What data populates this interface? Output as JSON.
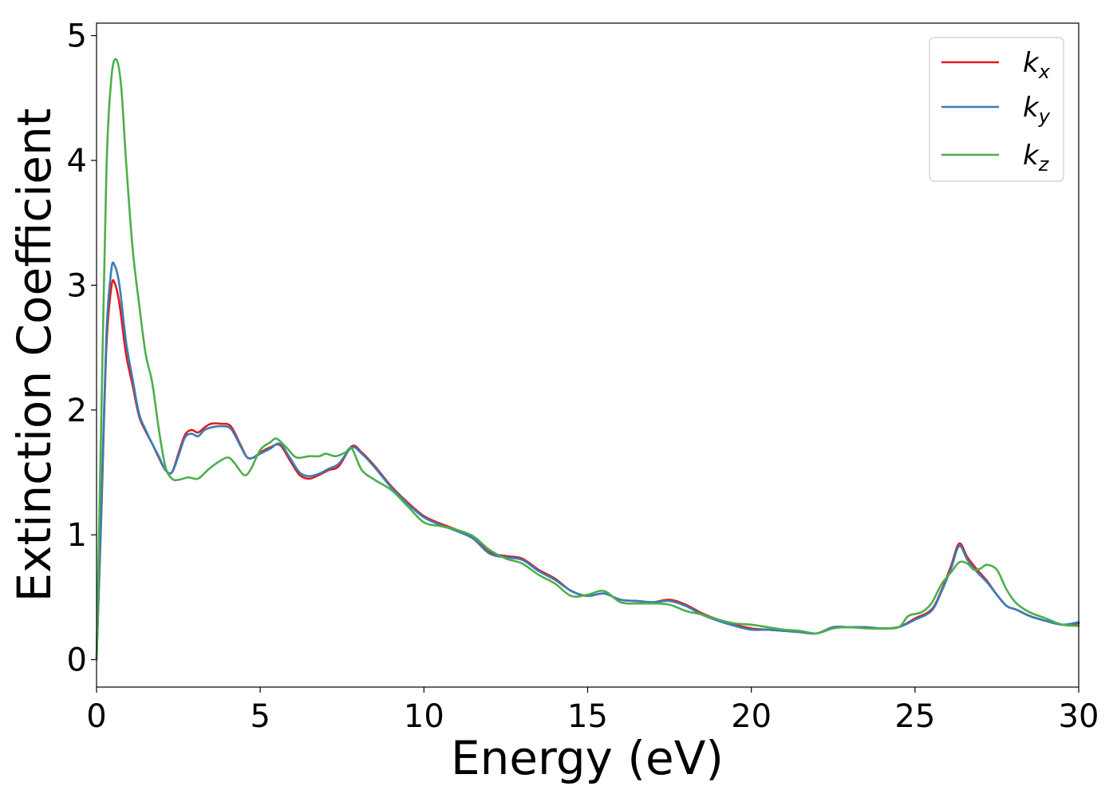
{
  "chart_data": {
    "type": "line",
    "title": "",
    "xlabel": "Energy (eV)",
    "ylabel": "Extinction Coefficient",
    "xlim": [
      0,
      30
    ],
    "ylim": [
      -0.22,
      5.1
    ],
    "xticks": [
      0,
      5,
      10,
      15,
      20,
      25,
      30
    ],
    "yticks": [
      0,
      1,
      2,
      3,
      4,
      5
    ],
    "grid": false,
    "legend_position": "top-right",
    "series": [
      {
        "name": "kx",
        "label_base": "k",
        "label_sub": "x",
        "color": "#e41a1c",
        "x": [
          0,
          0.15,
          0.3,
          0.45,
          0.55,
          0.7,
          0.9,
          1.1,
          1.3,
          1.5,
          1.7,
          1.9,
          2.1,
          2.3,
          2.5,
          2.7,
          2.9,
          3.1,
          3.3,
          3.5,
          3.8,
          4.1,
          4.4,
          4.6,
          4.8,
          5.0,
          5.3,
          5.6,
          5.9,
          6.2,
          6.5,
          6.8,
          7.1,
          7.4,
          7.8,
          8.1,
          8.5,
          9.0,
          9.5,
          10.0,
          10.5,
          11.0,
          11.5,
          12.0,
          12.5,
          13.0,
          13.5,
          14.0,
          14.5,
          15.0,
          15.5,
          16.0,
          16.5,
          17.0,
          17.5,
          18.0,
          18.5,
          19.0,
          19.5,
          20.0,
          20.5,
          21.0,
          21.5,
          22.0,
          22.5,
          23.0,
          23.5,
          24.0,
          24.5,
          25.0,
          25.5,
          25.8,
          26.1,
          26.35,
          26.6,
          26.9,
          27.2,
          27.5,
          27.8,
          28.1,
          28.5,
          29.0,
          29.5,
          30.0
        ],
        "y": [
          0.0,
          1.2,
          2.5,
          2.98,
          3.02,
          2.85,
          2.45,
          2.2,
          1.95,
          1.83,
          1.73,
          1.62,
          1.52,
          1.5,
          1.65,
          1.8,
          1.84,
          1.82,
          1.86,
          1.89,
          1.89,
          1.87,
          1.72,
          1.62,
          1.62,
          1.66,
          1.7,
          1.72,
          1.6,
          1.48,
          1.45,
          1.48,
          1.52,
          1.55,
          1.71,
          1.66,
          1.55,
          1.39,
          1.26,
          1.15,
          1.09,
          1.04,
          0.98,
          0.86,
          0.83,
          0.81,
          0.72,
          0.65,
          0.55,
          0.51,
          0.53,
          0.48,
          0.47,
          0.46,
          0.48,
          0.44,
          0.37,
          0.32,
          0.28,
          0.25,
          0.24,
          0.23,
          0.22,
          0.21,
          0.26,
          0.26,
          0.26,
          0.25,
          0.26,
          0.33,
          0.4,
          0.55,
          0.75,
          0.93,
          0.82,
          0.72,
          0.63,
          0.52,
          0.43,
          0.4,
          0.35,
          0.31,
          0.28,
          0.29
        ]
      },
      {
        "name": "ky",
        "label_base": "k",
        "label_sub": "y",
        "color": "#377eb8",
        "x": [
          0,
          0.15,
          0.3,
          0.45,
          0.55,
          0.7,
          0.9,
          1.1,
          1.3,
          1.5,
          1.7,
          1.9,
          2.1,
          2.3,
          2.5,
          2.7,
          2.9,
          3.1,
          3.3,
          3.5,
          3.8,
          4.1,
          4.4,
          4.6,
          4.8,
          5.0,
          5.3,
          5.6,
          5.9,
          6.2,
          6.5,
          6.8,
          7.1,
          7.4,
          7.8,
          8.1,
          8.5,
          9.0,
          9.5,
          10.0,
          10.5,
          11.0,
          11.5,
          12.0,
          12.5,
          13.0,
          13.5,
          14.0,
          14.5,
          15.0,
          15.5,
          16.0,
          16.5,
          17.0,
          17.5,
          18.0,
          18.5,
          19.0,
          19.5,
          20.0,
          20.5,
          21.0,
          21.5,
          22.0,
          22.5,
          23.0,
          23.5,
          24.0,
          24.5,
          25.0,
          25.5,
          25.8,
          26.1,
          26.35,
          26.6,
          26.9,
          27.2,
          27.5,
          27.8,
          28.1,
          28.5,
          29.0,
          29.5,
          30.0
        ],
        "y": [
          0.0,
          1.25,
          2.6,
          3.12,
          3.16,
          3.0,
          2.55,
          2.25,
          1.97,
          1.84,
          1.73,
          1.63,
          1.52,
          1.5,
          1.63,
          1.78,
          1.81,
          1.79,
          1.84,
          1.86,
          1.87,
          1.85,
          1.71,
          1.62,
          1.62,
          1.65,
          1.69,
          1.73,
          1.62,
          1.5,
          1.47,
          1.49,
          1.53,
          1.57,
          1.7,
          1.65,
          1.54,
          1.38,
          1.25,
          1.14,
          1.08,
          1.03,
          0.97,
          0.85,
          0.82,
          0.8,
          0.71,
          0.64,
          0.55,
          0.51,
          0.53,
          0.48,
          0.47,
          0.46,
          0.47,
          0.43,
          0.36,
          0.31,
          0.27,
          0.24,
          0.24,
          0.23,
          0.22,
          0.21,
          0.26,
          0.26,
          0.26,
          0.25,
          0.26,
          0.32,
          0.39,
          0.54,
          0.73,
          0.91,
          0.8,
          0.7,
          0.62,
          0.52,
          0.43,
          0.4,
          0.35,
          0.31,
          0.28,
          0.3
        ]
      },
      {
        "name": "kz",
        "label_base": "k",
        "label_sub": "z",
        "color": "#4daf4a",
        "x": [
          0,
          0.15,
          0.3,
          0.45,
          0.6,
          0.75,
          0.9,
          1.1,
          1.3,
          1.5,
          1.7,
          1.9,
          2.1,
          2.3,
          2.5,
          2.8,
          3.1,
          3.4,
          3.7,
          4.0,
          4.2,
          4.5,
          4.7,
          5.0,
          5.3,
          5.5,
          5.8,
          6.1,
          6.5,
          6.8,
          7.0,
          7.3,
          7.6,
          7.8,
          8.1,
          8.5,
          9.0,
          9.5,
          10.0,
          10.5,
          11.0,
          11.5,
          12.0,
          12.5,
          13.0,
          13.5,
          14.0,
          14.5,
          15.0,
          15.5,
          16.0,
          16.5,
          17.0,
          17.5,
          18.0,
          18.5,
          19.0,
          19.5,
          20.0,
          20.5,
          21.0,
          21.5,
          22.0,
          22.5,
          23.0,
          23.5,
          24.0,
          24.5,
          24.8,
          25.2,
          25.5,
          25.8,
          26.1,
          26.35,
          26.6,
          26.8,
          27.0,
          27.2,
          27.5,
          27.8,
          28.1,
          28.5,
          29.0,
          29.5,
          30.0
        ],
        "y": [
          0.0,
          2.0,
          3.9,
          4.65,
          4.81,
          4.6,
          4.0,
          3.3,
          2.85,
          2.45,
          2.22,
          1.85,
          1.55,
          1.45,
          1.44,
          1.46,
          1.45,
          1.52,
          1.58,
          1.62,
          1.58,
          1.48,
          1.52,
          1.68,
          1.74,
          1.77,
          1.7,
          1.62,
          1.63,
          1.63,
          1.65,
          1.63,
          1.66,
          1.69,
          1.52,
          1.44,
          1.36,
          1.23,
          1.1,
          1.07,
          1.04,
          0.99,
          0.88,
          0.81,
          0.77,
          0.68,
          0.61,
          0.51,
          0.52,
          0.55,
          0.46,
          0.45,
          0.45,
          0.44,
          0.39,
          0.36,
          0.32,
          0.29,
          0.28,
          0.26,
          0.24,
          0.23,
          0.21,
          0.25,
          0.26,
          0.25,
          0.25,
          0.26,
          0.35,
          0.38,
          0.45,
          0.6,
          0.7,
          0.78,
          0.77,
          0.72,
          0.73,
          0.76,
          0.72,
          0.56,
          0.45,
          0.38,
          0.33,
          0.28,
          0.27
        ]
      }
    ]
  }
}
